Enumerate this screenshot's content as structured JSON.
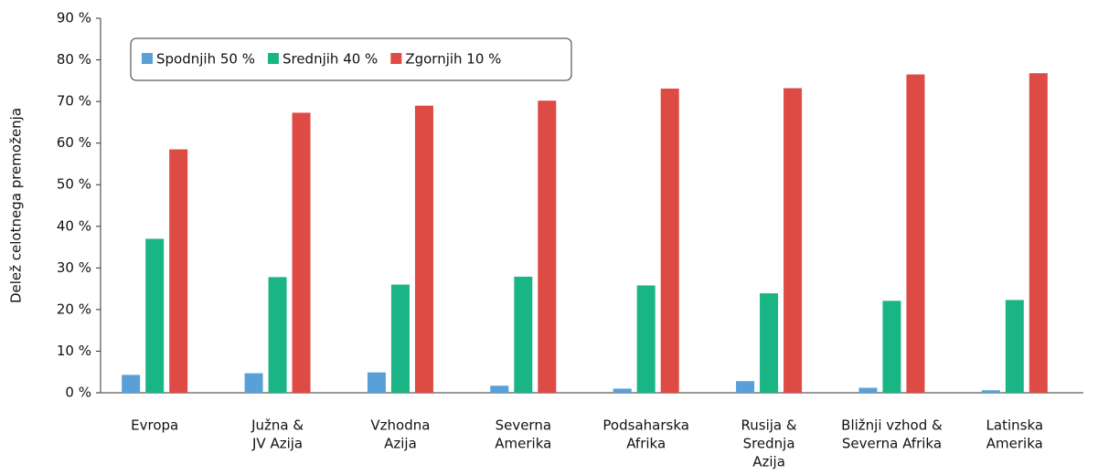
{
  "chart_data": {
    "type": "bar",
    "y_label": "Delež celotnega premoženja",
    "categories": [
      [
        "Evropa"
      ],
      [
        "Južna &",
        "JV Azija"
      ],
      [
        "Vzhodna",
        "Azija"
      ],
      [
        "Severna",
        "Amerika"
      ],
      [
        "Podsaharska",
        "Afrika"
      ],
      [
        "Rusija &",
        "Srednja",
        "Azija"
      ],
      [
        "Bližnji vzhod &",
        "Severna Afrika"
      ],
      [
        "Latinska",
        "Amerika"
      ]
    ],
    "series": [
      {
        "name": "Spodnjih 50 %",
        "color": "#5aa0d8",
        "values": [
          4.3,
          4.7,
          4.9,
          1.7,
          1.0,
          2.8,
          1.2,
          0.6
        ]
      },
      {
        "name": "Srednjih 40 %",
        "color": "#1ab584",
        "values": [
          37.0,
          27.8,
          26.0,
          27.9,
          25.8,
          23.9,
          22.1,
          22.3
        ]
      },
      {
        "name": "Zgornjih 10 %",
        "color": "#dd4b44",
        "values": [
          58.5,
          67.3,
          69.0,
          70.2,
          73.1,
          73.2,
          76.5,
          76.8
        ]
      }
    ],
    "ylim": [
      0,
      90
    ],
    "yticks": [
      {
        "value": 0,
        "label": "0 %"
      },
      {
        "value": 10,
        "label": "10 %"
      },
      {
        "value": 20,
        "label": "20 %"
      },
      {
        "value": 30,
        "label": "30 %"
      },
      {
        "value": 40,
        "label": "40 %"
      },
      {
        "value": 50,
        "label": "50 %"
      },
      {
        "value": 60,
        "label": "60 %"
      },
      {
        "value": 70,
        "label": "70 %"
      },
      {
        "value": 80,
        "label": "80 %"
      },
      {
        "value": 90,
        "label": "90 %"
      }
    ],
    "legend": "top-left"
  }
}
